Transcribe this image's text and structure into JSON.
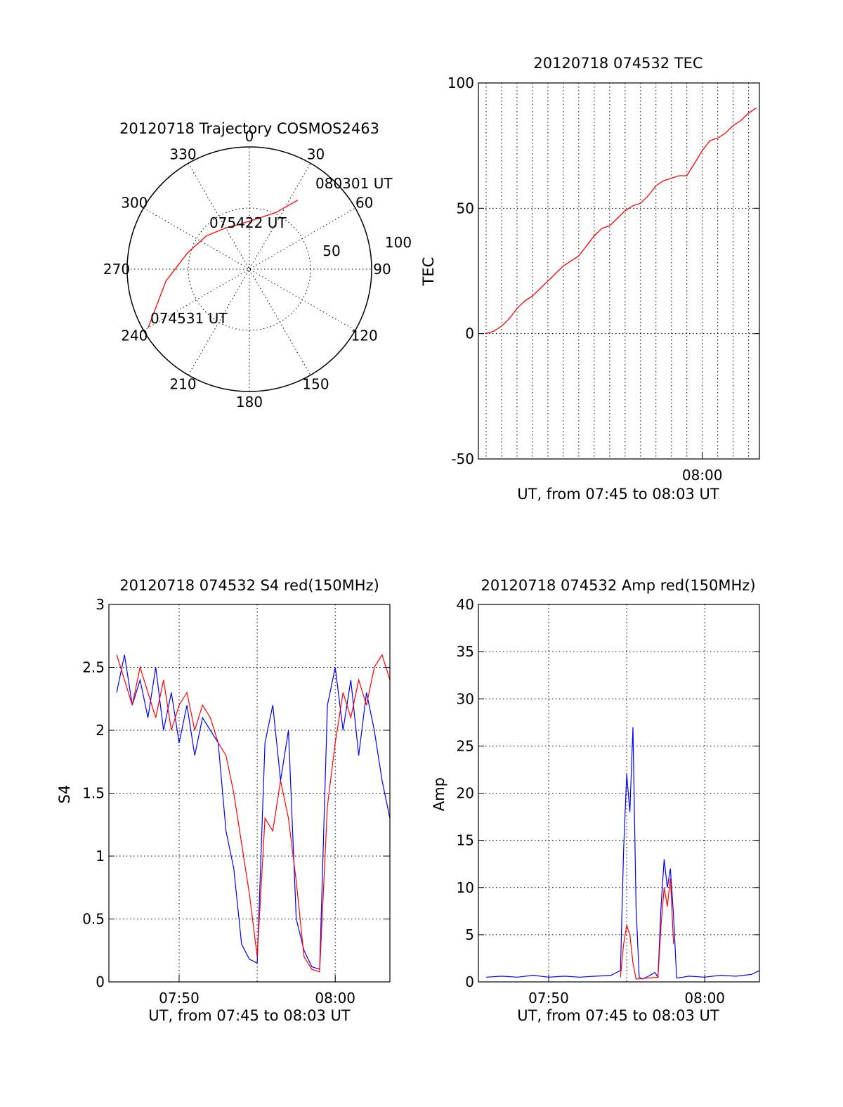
{
  "chart_data": [
    {
      "type": "polar",
      "title": "20120718 Trajectory COSMOS2463",
      "azimuth_labels": [
        "0",
        "30",
        "60",
        "90",
        "120",
        "150",
        "180",
        "210",
        "240",
        "270",
        "300",
        "330"
      ],
      "radius_labels": [
        "50",
        "100"
      ],
      "trajectory": [
        {
          "azimuth": 240,
          "elevation": 4
        },
        {
          "azimuth": 262,
          "elevation": 28
        },
        {
          "azimuth": 285,
          "elevation": 43
        },
        {
          "azimuth": 308,
          "elevation": 50
        },
        {
          "azimuth": 330,
          "elevation": 55
        },
        {
          "azimuth": 350,
          "elevation": 56
        },
        {
          "azimuth": 10,
          "elevation": 52
        },
        {
          "azimuth": 25,
          "elevation": 44
        },
        {
          "azimuth": 35,
          "elevation": 28
        }
      ],
      "annotations": [
        {
          "text": "074531 UT",
          "azimuth": 240,
          "elevation": 4
        },
        {
          "text": "075422 UT",
          "azimuth": 308,
          "elevation": 50
        },
        {
          "text": "080301 UT",
          "azimuth": 35,
          "elevation": 28
        }
      ],
      "line_color": "#ff0000"
    },
    {
      "type": "line",
      "title": "20120718 074532 TEC",
      "xlabel": "UT, from 07:45 to 08:03 UT",
      "ylabel": "TEC",
      "xlim_minutes": [
        45.5,
        63.7
      ],
      "ylim": [
        -50,
        100
      ],
      "yticks": [
        "-50",
        "0",
        "50",
        "100"
      ],
      "xticks": [
        {
          "label": "08:00",
          "minute": 60
        }
      ],
      "series": [
        {
          "color": "#ff0000",
          "x_minutes": [
            46,
            46.5,
            47,
            47.5,
            48,
            48.5,
            49,
            49.5,
            50,
            50.5,
            51,
            51.5,
            52,
            52.5,
            53,
            53.5,
            54,
            54.5,
            55,
            55.5,
            56,
            56.5,
            57,
            57.5,
            58,
            58.5,
            59,
            59.5,
            60,
            60.5,
            61,
            61.5,
            62,
            62.5,
            63,
            63.5
          ],
          "values": [
            0,
            1,
            3,
            6,
            10,
            13,
            15,
            18,
            21,
            24,
            27,
            29,
            31,
            35,
            39,
            42,
            43,
            46,
            49,
            51,
            52,
            55,
            59,
            61,
            62,
            63,
            63,
            68,
            73,
            77,
            78,
            80,
            83,
            85,
            88,
            90
          ]
        }
      ]
    },
    {
      "type": "line",
      "title": "20120718 074532 S4 red(150MHz)",
      "xlabel": "UT, from 07:45 to 08:03 UT",
      "ylabel": "S4",
      "xlim_minutes": [
        45.5,
        63.5
      ],
      "ylim": [
        0,
        3
      ],
      "yticks": [
        "0",
        "0.5",
        "1",
        "1.5",
        "2",
        "2.5",
        "3"
      ],
      "xticks": [
        {
          "label": "07:50",
          "minute": 50
        },
        {
          "label": "08:00",
          "minute": 60
        }
      ],
      "series": [
        {
          "color": "#0000ff",
          "x_minutes": [
            46,
            46.5,
            47,
            47.5,
            48,
            48.5,
            49,
            49.5,
            50,
            50.5,
            51,
            51.5,
            52,
            52.5,
            53,
            53.5,
            54,
            54.5,
            55,
            55.5,
            56,
            56.5,
            57,
            57.5,
            58,
            58.5,
            59,
            59.5,
            60,
            60.5,
            61,
            61.5,
            62,
            62.5,
            63,
            63.5
          ],
          "values": [
            2.3,
            2.6,
            2.2,
            2.4,
            2.1,
            2.5,
            2.0,
            2.3,
            1.9,
            2.2,
            1.8,
            2.1,
            2.0,
            1.9,
            1.2,
            0.9,
            0.3,
            0.18,
            0.15,
            1.9,
            2.2,
            1.6,
            2.0,
            0.5,
            0.25,
            0.12,
            0.1,
            2.2,
            2.5,
            2.0,
            2.4,
            1.8,
            2.3,
            2.0,
            1.6,
            1.3
          ]
        },
        {
          "color": "#ff0000",
          "x_minutes": [
            46,
            46.5,
            47,
            47.5,
            48,
            48.5,
            49,
            49.5,
            50,
            50.5,
            51,
            51.5,
            52,
            52.5,
            53,
            53.5,
            54,
            54.5,
            55,
            55.5,
            56,
            56.5,
            57,
            57.5,
            58,
            58.5,
            59,
            59.5,
            60,
            60.5,
            61,
            61.5,
            62,
            62.5,
            63,
            63.5
          ],
          "values": [
            2.6,
            2.4,
            2.2,
            2.5,
            2.3,
            2.1,
            2.4,
            2.0,
            2.2,
            2.3,
            2.0,
            2.2,
            2.1,
            1.9,
            1.8,
            1.5,
            1.1,
            0.7,
            0.2,
            1.3,
            1.2,
            1.6,
            1.3,
            0.8,
            0.2,
            0.1,
            0.08,
            1.4,
            1.9,
            2.3,
            2.1,
            2.4,
            2.2,
            2.5,
            2.6,
            2.4
          ]
        }
      ]
    },
    {
      "type": "line",
      "title": "20120718 074532 Amp red(150MHz)",
      "xlabel": "UT, from 07:45 to 08:03 UT",
      "ylabel": "Amp",
      "xlim_minutes": [
        45.5,
        63.5
      ],
      "ylim": [
        0,
        40
      ],
      "yticks": [
        "0",
        "5",
        "10",
        "15",
        "20",
        "25",
        "30",
        "35",
        "40"
      ],
      "xticks": [
        {
          "label": "07:50",
          "minute": 50
        },
        {
          "label": "08:00",
          "minute": 60
        }
      ],
      "series": [
        {
          "color": "#0000ff",
          "x_minutes": [
            46,
            47,
            48,
            49,
            50,
            51,
            52,
            53,
            54,
            54.6,
            54.8,
            55,
            55.2,
            55.4,
            55.6,
            55.8,
            56,
            56.4,
            56.8,
            57,
            57.2,
            57.4,
            57.6,
            57.8,
            58,
            58.2,
            58.6,
            59,
            60,
            61,
            62,
            63,
            63.5
          ],
          "values": [
            0.5,
            0.6,
            0.5,
            0.7,
            0.5,
            0.6,
            0.5,
            0.6,
            0.7,
            1.2,
            14,
            22,
            18,
            27,
            8,
            0.5,
            0.3,
            0.6,
            1.0,
            0.5,
            8,
            13,
            10,
            12,
            7,
            0.4,
            0.5,
            0.6,
            0.5,
            0.7,
            0.6,
            0.8,
            1.2
          ]
        },
        {
          "color": "#ff0000",
          "x_minutes": [
            54.6,
            54.8,
            55,
            55.2,
            55.4,
            55.6,
            57,
            57.2,
            57.4,
            57.6,
            57.8,
            58
          ],
          "values": [
            0.5,
            4,
            6,
            5,
            2,
            0.3,
            0.5,
            6,
            10,
            8,
            11,
            4
          ]
        }
      ]
    }
  ]
}
